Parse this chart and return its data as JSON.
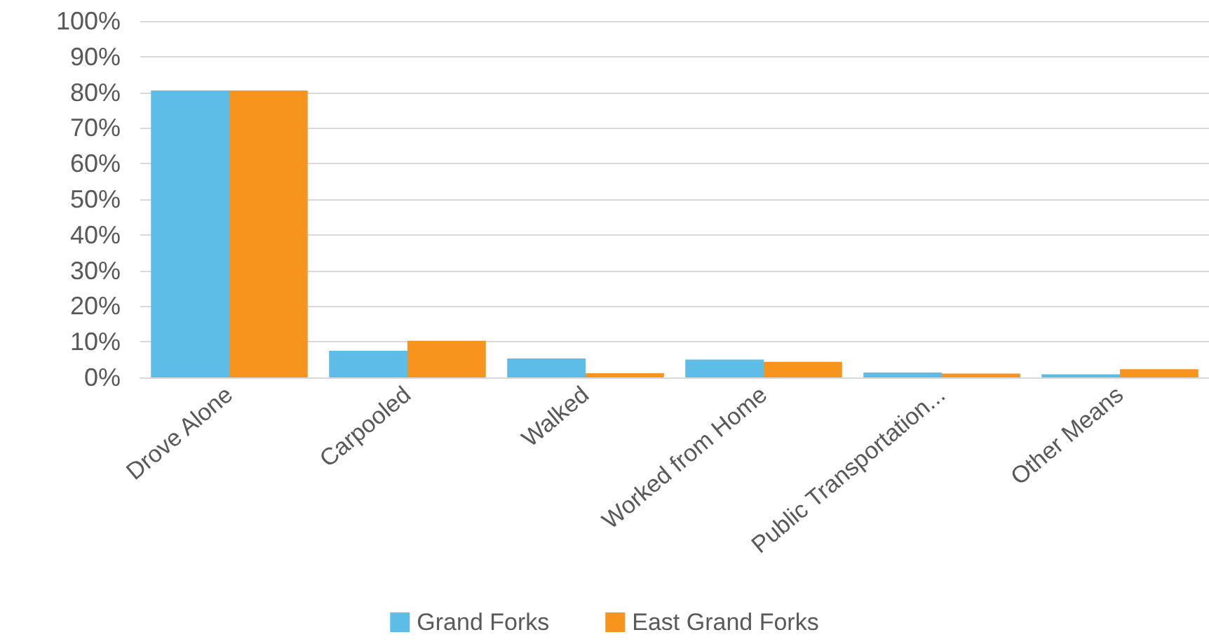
{
  "chart_data": {
    "type": "bar",
    "categories": [
      "Drove Alone",
      "Carpooled",
      "Walked",
      "Worked from Home",
      "Public Transportation...",
      "Other Means"
    ],
    "series": [
      {
        "name": "Grand Forks",
        "color": "#5dbde7",
        "values": [
          80.5,
          7.5,
          5.3,
          5.0,
          1.4,
          0.9
        ]
      },
      {
        "name": "East Grand Forks",
        "color": "#f7941e",
        "values": [
          80.5,
          10.3,
          1.2,
          4.4,
          1.1,
          2.3
        ]
      }
    ],
    "ylim": [
      0,
      100
    ],
    "yticks": [
      {
        "value": 0,
        "label": "0%"
      },
      {
        "value": 10,
        "label": "10%"
      },
      {
        "value": 20,
        "label": "20%"
      },
      {
        "value": 30,
        "label": "30%"
      },
      {
        "value": 40,
        "label": "40%"
      },
      {
        "value": 50,
        "label": "50%"
      },
      {
        "value": 60,
        "label": "60%"
      },
      {
        "value": 70,
        "label": "70%"
      },
      {
        "value": 80,
        "label": "80%"
      },
      {
        "value": 90,
        "label": "90%"
      },
      {
        "value": 100,
        "label": "100%"
      }
    ],
    "grid": "y",
    "legend": "bottom"
  }
}
